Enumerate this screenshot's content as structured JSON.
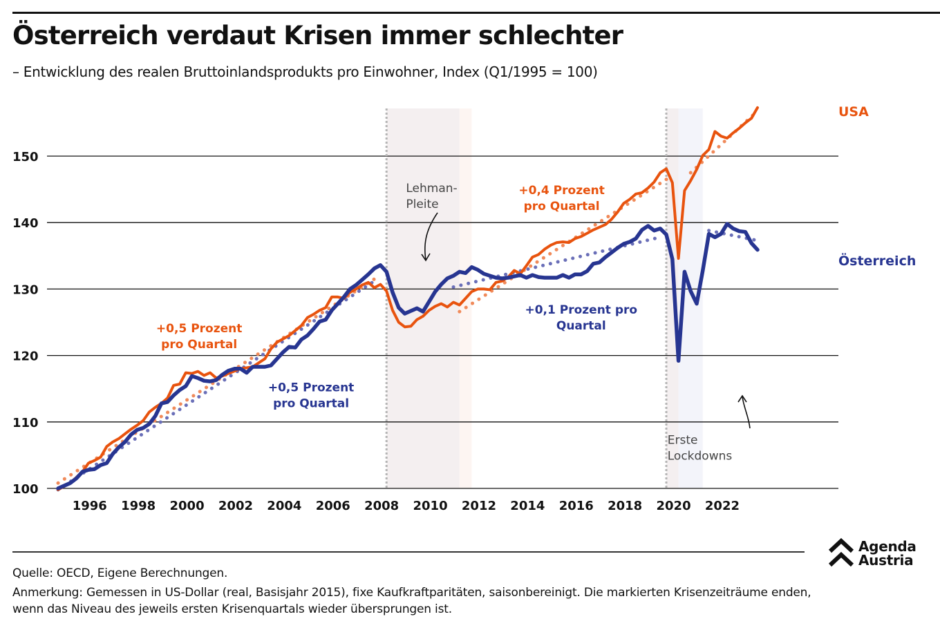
{
  "header": {
    "title": "Österreich verdaut Krisen immer schlechter",
    "subtitle": "– Entwicklung des realen Bruttoinlandsprodukts pro Einwohner, Index (Q1/1995 = 100)"
  },
  "footer": {
    "source": "Quelle: OECD, Eigene Berechnungen.",
    "note": "Anmerkung: Gemessen in US-Dollar (real, Basisjahr 2015), fixe Kaufkraftparitäten, saisonbereinigt. Die markierten Krisenzeiträume enden, wenn das Niveau des jeweils ersten Krisenquartals wieder übersprungen ist.",
    "logo_line1": "Agenda",
    "logo_line2": "Austria",
    "logo_icon": "double-chevron-up-icon"
  },
  "colors": {
    "usa": "#e8530e",
    "austria": "#273591",
    "usa_trend": "#f08a5a",
    "austria_trend": "#6a6fb8",
    "crisis_shade": "#f4eff0",
    "crisis_shade_tail_2008": "#fdf5f2",
    "crisis_shade_tail_2020": "#f3f4fa",
    "grid": "#111111"
  },
  "chart_data": {
    "type": "line",
    "title": "Österreich verdaut Krisen immer schlechter",
    "subtitle": "Entwicklung des realen Bruttoinlandsprodukts pro Einwohner, Index (Q1/1995 = 100)",
    "xlabel": "",
    "ylabel": "",
    "x_unit": "quarter (decimal year)",
    "xlim": [
      1995.0,
      2023.75
    ],
    "ylim": [
      100,
      157
    ],
    "yticks": [
      100,
      110,
      120,
      130,
      140,
      150
    ],
    "ytick_labels": [
      "100",
      "110",
      "120",
      "130",
      "140",
      "150"
    ],
    "xticks": [
      1996,
      1998,
      2000,
      2002,
      2004,
      2006,
      2008,
      2010,
      2012,
      2014,
      2016,
      2018,
      2020,
      2022
    ],
    "xtick_labels": [
      "1996",
      "1998",
      "2000",
      "2002",
      "2004",
      "2006",
      "2008",
      "2010",
      "2012",
      "2014",
      "2016",
      "2018",
      "2020",
      "2022"
    ],
    "grid": "horizontal",
    "legend": "direct labels at right end of lines",
    "series": [
      {
        "name": "USA",
        "label": "USA",
        "points": [
          [
            1995.0,
            99.8
          ],
          [
            1995.5,
            100.8
          ],
          [
            1996.0,
            102.5
          ],
          [
            1996.25,
            103.8
          ],
          [
            1996.5,
            104.2
          ],
          [
            1996.75,
            104.7
          ],
          [
            1997.0,
            106.3
          ],
          [
            1997.25,
            107.0
          ],
          [
            1997.5,
            107.5
          ],
          [
            1997.75,
            108.2
          ],
          [
            1998.0,
            108.9
          ],
          [
            1998.25,
            109.5
          ],
          [
            1998.5,
            110.2
          ],
          [
            1998.75,
            111.5
          ],
          [
            1999.0,
            112.2
          ],
          [
            1999.25,
            112.8
          ],
          [
            1999.5,
            113.6
          ],
          [
            1999.75,
            115.5
          ],
          [
            2000.0,
            115.7
          ],
          [
            2000.25,
            117.4
          ],
          [
            2000.5,
            117.3
          ],
          [
            2000.75,
            117.6
          ],
          [
            2001.0,
            117.0
          ],
          [
            2001.25,
            117.4
          ],
          [
            2001.5,
            116.6
          ],
          [
            2001.75,
            116.9
          ],
          [
            2002.0,
            117.3
          ],
          [
            2002.5,
            118.0
          ],
          [
            2003.0,
            118.3
          ],
          [
            2003.5,
            119.5
          ],
          [
            2003.75,
            121.0
          ],
          [
            2004.0,
            122.0
          ],
          [
            2004.5,
            123.0
          ],
          [
            2005.0,
            124.5
          ],
          [
            2005.25,
            125.7
          ],
          [
            2005.5,
            126.2
          ],
          [
            2005.75,
            126.8
          ],
          [
            2006.0,
            127.2
          ],
          [
            2006.25,
            128.8
          ],
          [
            2006.5,
            128.8
          ],
          [
            2006.75,
            128.6
          ],
          [
            2007.0,
            129.5
          ],
          [
            2007.25,
            130.0
          ],
          [
            2007.5,
            130.6
          ],
          [
            2007.75,
            131.0
          ],
          [
            2008.0,
            130.2
          ],
          [
            2008.25,
            130.7
          ],
          [
            2008.5,
            129.7
          ],
          [
            2008.75,
            126.8
          ],
          [
            2009.0,
            125.0
          ],
          [
            2009.25,
            124.3
          ],
          [
            2009.5,
            124.4
          ],
          [
            2009.75,
            125.4
          ],
          [
            2010.0,
            125.9
          ],
          [
            2010.25,
            126.8
          ],
          [
            2010.5,
            127.4
          ],
          [
            2010.75,
            127.8
          ],
          [
            2011.0,
            127.3
          ],
          [
            2011.25,
            128.0
          ],
          [
            2011.5,
            127.6
          ],
          [
            2011.75,
            128.6
          ],
          [
            2012.0,
            129.6
          ],
          [
            2012.25,
            130.0
          ],
          [
            2012.5,
            130.0
          ],
          [
            2012.75,
            129.9
          ],
          [
            2013.0,
            131.0
          ],
          [
            2013.25,
            131.2
          ],
          [
            2013.5,
            131.8
          ],
          [
            2013.75,
            132.8
          ],
          [
            2014.0,
            132.3
          ],
          [
            2014.25,
            133.5
          ],
          [
            2014.5,
            134.8
          ],
          [
            2014.75,
            135.2
          ],
          [
            2015.0,
            136.0
          ],
          [
            2015.25,
            136.6
          ],
          [
            2015.5,
            137.0
          ],
          [
            2015.75,
            137.1
          ],
          [
            2016.0,
            137.0
          ],
          [
            2016.25,
            137.6
          ],
          [
            2016.5,
            137.9
          ],
          [
            2016.75,
            138.4
          ],
          [
            2017.0,
            138.9
          ],
          [
            2017.25,
            139.3
          ],
          [
            2017.5,
            139.7
          ],
          [
            2017.75,
            140.5
          ],
          [
            2018.0,
            141.6
          ],
          [
            2018.25,
            142.9
          ],
          [
            2018.5,
            143.5
          ],
          [
            2018.75,
            144.3
          ],
          [
            2019.0,
            144.5
          ],
          [
            2019.25,
            145.2
          ],
          [
            2019.5,
            146.1
          ],
          [
            2019.75,
            147.5
          ],
          [
            2020.0,
            148.1
          ],
          [
            2020.25,
            146.0
          ],
          [
            2020.5,
            134.6
          ],
          [
            2020.75,
            144.8
          ],
          [
            2021.0,
            146.3
          ],
          [
            2021.25,
            148.0
          ],
          [
            2021.5,
            150.1
          ],
          [
            2021.75,
            151.0
          ],
          [
            2022.0,
            153.7
          ],
          [
            2022.25,
            153.0
          ],
          [
            2022.5,
            152.7
          ],
          [
            2022.75,
            153.5
          ],
          [
            2023.0,
            154.2
          ],
          [
            2023.25,
            155.0
          ],
          [
            2023.5,
            155.7
          ],
          [
            2023.75,
            157.3
          ]
        ]
      },
      {
        "name": "Österreich",
        "label": "Österreich",
        "points": [
          [
            1995.0,
            100.0
          ],
          [
            1995.25,
            100.4
          ],
          [
            1995.5,
            100.8
          ],
          [
            1995.75,
            101.5
          ],
          [
            1996.0,
            102.5
          ],
          [
            1996.25,
            102.8
          ],
          [
            1996.5,
            102.9
          ],
          [
            1996.75,
            103.5
          ],
          [
            1997.0,
            103.8
          ],
          [
            1997.25,
            105.2
          ],
          [
            1997.5,
            106.2
          ],
          [
            1997.75,
            107.0
          ],
          [
            1998.0,
            108.1
          ],
          [
            1998.25,
            108.8
          ],
          [
            1998.5,
            109.1
          ],
          [
            1998.75,
            109.7
          ],
          [
            1999.0,
            110.9
          ],
          [
            1999.25,
            112.8
          ],
          [
            1999.5,
            113.0
          ],
          [
            1999.75,
            114.0
          ],
          [
            2000.0,
            114.8
          ],
          [
            2000.25,
            115.4
          ],
          [
            2000.5,
            116.9
          ],
          [
            2000.75,
            116.6
          ],
          [
            2001.0,
            116.2
          ],
          [
            2001.25,
            116.1
          ],
          [
            2001.5,
            116.3
          ],
          [
            2001.75,
            117.1
          ],
          [
            2002.0,
            117.7
          ],
          [
            2002.25,
            118.0
          ],
          [
            2002.5,
            118.0
          ],
          [
            2002.75,
            117.4
          ],
          [
            2003.0,
            118.3
          ],
          [
            2003.5,
            118.3
          ],
          [
            2003.75,
            118.5
          ],
          [
            2004.0,
            119.5
          ],
          [
            2004.25,
            120.5
          ],
          [
            2004.5,
            121.3
          ],
          [
            2004.75,
            121.2
          ],
          [
            2005.0,
            122.4
          ],
          [
            2005.25,
            123.0
          ],
          [
            2005.5,
            124.0
          ],
          [
            2005.75,
            125.1
          ],
          [
            2006.0,
            125.4
          ],
          [
            2006.25,
            126.8
          ],
          [
            2006.5,
            127.8
          ],
          [
            2006.75,
            128.8
          ],
          [
            2007.0,
            130.0
          ],
          [
            2007.25,
            130.6
          ],
          [
            2007.5,
            131.4
          ],
          [
            2007.75,
            132.2
          ],
          [
            2008.0,
            133.1
          ],
          [
            2008.25,
            133.6
          ],
          [
            2008.5,
            132.6
          ],
          [
            2008.75,
            129.5
          ],
          [
            2009.0,
            127.2
          ],
          [
            2009.25,
            126.3
          ],
          [
            2009.5,
            126.7
          ],
          [
            2009.75,
            127.1
          ],
          [
            2010.0,
            126.6
          ],
          [
            2010.25,
            128.1
          ],
          [
            2010.5,
            129.6
          ],
          [
            2010.75,
            130.7
          ],
          [
            2011.0,
            131.6
          ],
          [
            2011.25,
            132.0
          ],
          [
            2011.5,
            132.6
          ],
          [
            2011.75,
            132.4
          ],
          [
            2012.0,
            133.3
          ],
          [
            2012.25,
            132.9
          ],
          [
            2012.5,
            132.3
          ],
          [
            2012.75,
            132.0
          ],
          [
            2013.0,
            131.7
          ],
          [
            2013.25,
            131.6
          ],
          [
            2013.5,
            131.7
          ],
          [
            2013.75,
            131.9
          ],
          [
            2014.0,
            132.1
          ],
          [
            2014.25,
            131.7
          ],
          [
            2014.5,
            132.1
          ],
          [
            2014.75,
            131.8
          ],
          [
            2015.0,
            131.7
          ],
          [
            2015.5,
            131.7
          ],
          [
            2015.75,
            132.1
          ],
          [
            2016.0,
            131.7
          ],
          [
            2016.25,
            132.2
          ],
          [
            2016.5,
            132.2
          ],
          [
            2016.75,
            132.7
          ],
          [
            2017.0,
            133.8
          ],
          [
            2017.25,
            134.0
          ],
          [
            2017.5,
            134.8
          ],
          [
            2017.75,
            135.5
          ],
          [
            2018.0,
            136.2
          ],
          [
            2018.25,
            136.8
          ],
          [
            2018.5,
            137.1
          ],
          [
            2018.75,
            137.6
          ],
          [
            2019.0,
            138.9
          ],
          [
            2019.25,
            139.5
          ],
          [
            2019.5,
            138.8
          ],
          [
            2019.75,
            139.1
          ],
          [
            2020.0,
            138.2
          ],
          [
            2020.25,
            134.5
          ],
          [
            2020.5,
            119.2
          ],
          [
            2020.75,
            132.6
          ],
          [
            2021.0,
            129.7
          ],
          [
            2021.25,
            127.8
          ],
          [
            2021.5,
            132.8
          ],
          [
            2021.75,
            138.3
          ],
          [
            2022.0,
            137.8
          ],
          [
            2022.25,
            138.3
          ],
          [
            2022.5,
            139.8
          ],
          [
            2022.75,
            139.1
          ],
          [
            2023.0,
            138.7
          ],
          [
            2023.25,
            138.6
          ],
          [
            2023.5,
            136.9
          ],
          [
            2023.75,
            135.9
          ]
        ]
      }
    ],
    "trendlines": [
      {
        "name": "USA trend 1995–2008",
        "series": "USA",
        "from": [
          1995.0,
          100.8
        ],
        "to": [
          2008.0,
          131.5
        ]
      },
      {
        "name": "Österreich trend 1995–2008",
        "series": "Österreich",
        "from": [
          1995.0,
          99.8
        ],
        "to": [
          2008.0,
          131.2
        ]
      },
      {
        "name": "USA trend 2011–2020",
        "series": "USA",
        "from": [
          2011.5,
          126.6
        ],
        "to": [
          2020.0,
          146.5
        ]
      },
      {
        "name": "Österreich trend 2011–2020",
        "series": "Österreich",
        "from": [
          2011.25,
          130.3
        ],
        "to": [
          2019.75,
          137.8
        ]
      },
      {
        "name": "USA trend 2021–2023",
        "series": "USA",
        "from": [
          2021.0,
          147.5
        ],
        "to": [
          2023.75,
          156.8
        ]
      },
      {
        "name": "Österreich trend 2021–2023",
        "series": "Österreich",
        "from": [
          2021.75,
          138.8
        ],
        "to": [
          2023.75,
          137.3
        ]
      }
    ],
    "crisis_periods": [
      {
        "name": "Lehman-Pleite",
        "start": 2008.5,
        "core_end": 2011.5,
        "end": 2012.0
      },
      {
        "name": "Erste Lockdowns",
        "start": 2020.0,
        "core_end": 2020.5,
        "end": 2021.5
      }
    ],
    "annotations": [
      {
        "text_line1": "+0,5 Prozent",
        "text_line2": "pro Quartal",
        "series": "USA",
        "x": 2000.8,
        "y": 123.5
      },
      {
        "text_line1": "+0,5 Prozent",
        "text_line2": "pro Quartal",
        "series": "Österreich",
        "x": 2005.4,
        "y": 114.6
      },
      {
        "text_line1": "+0,4 Prozent",
        "text_line2": "pro Quartal",
        "series": "USA",
        "x": 2015.7,
        "y": 144.3
      },
      {
        "text_line1": "+0,1 Prozent pro",
        "text_line2": "Quartal",
        "series": "Österreich",
        "x": 2016.5,
        "y": 126.3
      },
      {
        "text_line1": "Lehman-",
        "text_line2": "Pleite",
        "series": "event",
        "x": 2009.3,
        "y": 144.6
      },
      {
        "text_line1": "Erste",
        "text_line2": "Lockdowns",
        "series": "event",
        "x": 2020.05,
        "y": 106.7
      }
    ]
  }
}
